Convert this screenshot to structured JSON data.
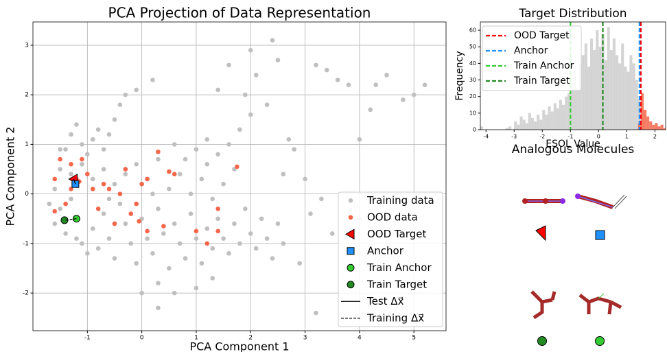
{
  "chart_data": [
    {
      "type": "scatter",
      "title": "PCA Projection of Data Representation",
      "xlabel": "PCA Component 1",
      "ylabel": "PCA Component 2",
      "xlim": [
        -2.0,
        5.59
      ],
      "ylim": [
        -2.76,
        3.47
      ],
      "xticks": [
        -1,
        0,
        1,
        2,
        3,
        4,
        5
      ],
      "yticks": [
        -2,
        -1,
        0,
        1,
        2,
        3
      ],
      "grid": true,
      "legend": "lower right",
      "series": [
        {
          "name": "Training data",
          "color": "#bfbfbf",
          "marker": "circle",
          "x": [
            -1.6,
            -1.5,
            -1.4,
            -1.3,
            -1.2,
            -1.1,
            -1.0,
            -0.9,
            -0.8,
            -0.7,
            -0.6,
            -0.5,
            -0.4,
            -0.3,
            -0.1,
            0.2,
            -1.7,
            -1.6,
            -1.5,
            -1.4,
            -1.3,
            -1.2,
            -1.1,
            -1.0,
            -0.9,
            -0.8,
            -0.7,
            -0.6,
            -0.5,
            -0.4,
            -0.3,
            -0.2,
            -0.1,
            0.0,
            0.1,
            0.2,
            0.3,
            0.4,
            0.5,
            0.6,
            0.7,
            0.8,
            0.9,
            1.0,
            1.1,
            1.2,
            1.3,
            1.4,
            1.5,
            1.6,
            1.7,
            1.8,
            1.9,
            2.0,
            2.1,
            2.2,
            2.3,
            2.4,
            2.5,
            2.6,
            0.3,
            0.6,
            1.0,
            1.3,
            0.0,
            0.3,
            -1.3,
            -1.1,
            -0.9,
            -0.7,
            -0.5,
            -0.3,
            -0.1,
            0.1,
            0.3,
            0.5,
            0.7,
            0.9,
            1.1,
            1.3,
            1.5,
            1.7,
            0.6,
            0.8,
            1.0,
            1.2,
            1.4,
            1.6,
            1.8,
            2.0,
            1.9,
            2.1,
            2.3,
            2.5,
            2.4,
            2.0,
            1.6,
            1.4,
            2.6,
            2.8,
            3.0,
            2.7,
            3.1,
            3.3,
            3.5,
            3.2,
            3.4,
            3.6,
            3.8,
            4.3,
            4.5,
            4.2,
            4.0,
            4.8,
            5.0,
            5.2,
            4.0,
            3.2,
            2.9,
            1.2,
            -0.6,
            0.2,
            -1.5
          ],
          "y": [
            0.1,
            0.5,
            0.9,
            1.2,
            1.4,
            1.0,
            0.8,
            1.1,
            1.3,
            0.9,
            1.2,
            1.5,
            1.8,
            2.0,
            2.1,
            2.3,
            -0.2,
            -0.6,
            -0.3,
            -0.8,
            -0.1,
            -0.9,
            -1.0,
            -1.2,
            -0.7,
            -1.1,
            -0.4,
            -0.9,
            -1.3,
            -0.2,
            -0.6,
            -1.0,
            -1.4,
            -0.5,
            -0.9,
            -1.2,
            -0.3,
            -0.8,
            -1.5,
            -0.6,
            -1.0,
            -1.3,
            -0.4,
            -0.9,
            -1.4,
            -0.7,
            -1.1,
            -0.5,
            -0.9,
            -1.2,
            -0.6,
            -1.0,
            -0.3,
            -0.8,
            -1.1,
            -0.5,
            -0.9,
            -1.3,
            -0.6,
            -1.0,
            -1.8,
            -2.0,
            -1.9,
            -1.7,
            -2.0,
            -2.3,
            0.4,
            0.6,
            0.3,
            0.5,
            0.2,
            0.4,
            0.6,
            0.3,
            0.7,
            0.1,
            0.4,
            0.0,
            0.3,
            -0.1,
            0.2,
            0.5,
            1.0,
            0.7,
            0.9,
            1.1,
            0.8,
            1.0,
            1.3,
            1.6,
            2.0,
            2.4,
            1.8,
            2.7,
            3.1,
            2.9,
            2.6,
            2.1,
            0.4,
            0.9,
            0.3,
            1.1,
            -0.4,
            -0.1,
            -0.8,
            2.6,
            2.5,
            2.3,
            2.2,
            2.2,
            2.4,
            1.7,
            1.1,
            1.9,
            2.0,
            2.2,
            -0.5,
            -2.4,
            -1.4,
            0.6,
            -0.1,
            0.0,
            0.9
          ]
        },
        {
          "name": "OOD data",
          "color": "#f4664a",
          "marker": "circle",
          "x": [
            -1.6,
            -1.5,
            -1.4,
            -1.3,
            -1.2,
            -1.15,
            -1.1,
            -1.0,
            -0.9,
            -0.8,
            -0.7,
            -0.6,
            -0.5,
            -0.4,
            -0.3,
            -0.2,
            -0.1,
            0.0,
            0.1,
            -0.05,
            0.1,
            0.3,
            0.5,
            0.6,
            0.4,
            1.0,
            1.2,
            1.4,
            1.4,
            1.75,
            -1.6,
            -1.3
          ],
          "y": [
            0.3,
            0.7,
            -0.2,
            0.6,
            0.3,
            0.25,
            0.7,
            0.4,
            0.1,
            -0.3,
            0.2,
            0.1,
            -0.6,
            0.0,
            0.5,
            -0.4,
            -0.2,
            0.2,
            0.3,
            -0.55,
            -0.75,
            0.85,
            0.45,
            0.4,
            -0.65,
            -0.75,
            -1.0,
            -0.3,
            -0.75,
            0.55,
            -0.35,
            0.1
          ]
        },
        {
          "name": "OOD Target",
          "color": "#ff0000",
          "marker": "triangle-left",
          "x": [
            -1.25
          ],
          "y": [
            0.3
          ]
        },
        {
          "name": "Anchor",
          "color": "#1e90ff",
          "marker": "square",
          "x": [
            -1.22
          ],
          "y": [
            0.2
          ]
        },
        {
          "name": "Train Anchor",
          "color": "#33cc33",
          "marker": "circle-edge",
          "x": [
            -1.2
          ],
          "y": [
            -0.5
          ]
        },
        {
          "name": "Train Target",
          "color": "#228b22",
          "marker": "circle-edge",
          "x": [
            -1.42
          ],
          "y": [
            -0.53
          ]
        }
      ],
      "lines": [
        {
          "name": "Test Δx⃗",
          "style": "solid",
          "x": [
            -1.22,
            -1.25
          ],
          "y": [
            0.2,
            0.3
          ]
        },
        {
          "name": "Training Δx⃗",
          "style": "dashed",
          "x": [
            -1.2,
            -1.42
          ],
          "y": [
            -0.5,
            -0.53
          ]
        }
      ]
    },
    {
      "type": "histogram",
      "title": "Target Distribution",
      "xlabel": "ESOL Value",
      "ylabel": "Frequency",
      "xlim": [
        -4.2,
        2.38
      ],
      "ylim": [
        0,
        65
      ],
      "xticks": [
        -4,
        -3,
        -2,
        -1,
        0,
        1,
        2
      ],
      "yticks": [
        0,
        10,
        20,
        30,
        40,
        50,
        60
      ],
      "legend": "upper left",
      "bins": [
        -4.3,
        -4.2,
        -4.1,
        -4.0,
        -3.9,
        -3.8,
        -3.7,
        -3.6,
        -3.5,
        -3.4,
        -3.3,
        -3.2,
        -3.1,
        -3.0,
        -2.9,
        -2.8,
        -2.7,
        -2.6,
        -2.5,
        -2.4,
        -2.3,
        -2.2,
        -2.1,
        -2.0,
        -1.9,
        -1.8,
        -1.7,
        -1.6,
        -1.5,
        -1.4,
        -1.3,
        -1.2,
        -1.1,
        -1.0,
        -0.9,
        -0.8,
        -0.7,
        -0.6,
        -0.5,
        -0.4,
        -0.3,
        -0.2,
        -0.1,
        0.0,
        0.1,
        0.2,
        0.3,
        0.4,
        0.5,
        0.6,
        0.7,
        0.8,
        0.9,
        1.0,
        1.1,
        1.2,
        1.3,
        1.4,
        1.5,
        1.6,
        1.7,
        1.8,
        1.9,
        2.0,
        2.1,
        2.2,
        2.3,
        2.4
      ],
      "series": [
        {
          "color": "#cccccc",
          "values": [
            0,
            2,
            0,
            0,
            0,
            0,
            0,
            0,
            0,
            0,
            1,
            2,
            0,
            5,
            3,
            8,
            6,
            4,
            10,
            7,
            5,
            9,
            6,
            12,
            9,
            14,
            11,
            16,
            13,
            18,
            15,
            20,
            22,
            28,
            35,
            25,
            40,
            45,
            52,
            38,
            55,
            48,
            60,
            50,
            58,
            42,
            62,
            48,
            55,
            45,
            40,
            52,
            38,
            35,
            45,
            40,
            30,
            18,
            0,
            0,
            0,
            0,
            0,
            0,
            0,
            0,
            0
          ]
        },
        {
          "color": "#f4664a",
          "values": [
            0,
            0,
            0,
            0,
            0,
            0,
            0,
            0,
            0,
            0,
            0,
            0,
            0,
            0,
            0,
            0,
            0,
            0,
            0,
            0,
            0,
            0,
            0,
            0,
            0,
            0,
            0,
            0,
            0,
            0,
            0,
            0,
            0,
            0,
            0,
            0,
            0,
            0,
            0,
            0,
            0,
            0,
            0,
            0,
            0,
            0,
            0,
            0,
            0,
            0,
            0,
            0,
            0,
            0,
            0,
            0,
            0,
            4,
            22,
            12,
            8,
            5,
            3,
            4,
            2,
            3,
            1
          ]
        }
      ],
      "vlines": [
        {
          "name": "OOD Target",
          "color": "#ff0000",
          "x": 1.5
        },
        {
          "name": "Anchor",
          "color": "#1e90ff",
          "x": 1.45
        },
        {
          "name": "Train Anchor",
          "color": "#33cc33",
          "x": -1.0
        },
        {
          "name": "Train Target",
          "color": "#228b22",
          "x": 0.15
        }
      ]
    },
    {
      "type": "molecules",
      "title": "Analogous Molecules"
    }
  ]
}
